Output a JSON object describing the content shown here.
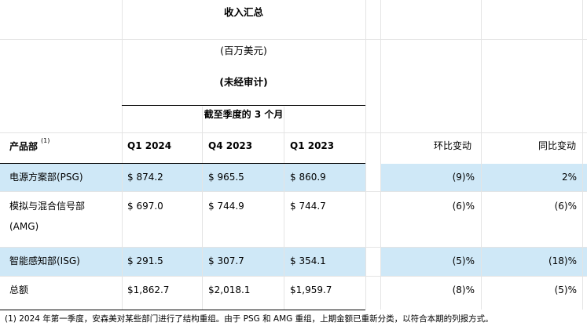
{
  "header": {
    "title": "收入汇总",
    "unit": "(百万美元)",
    "audit": "(未经审计)",
    "period": "截至季度的 3 个月"
  },
  "columns": {
    "segment_label": "产品部",
    "segment_note": "(1)",
    "q1_2024": "Q1 2024",
    "q4_2023": "Q4 2023",
    "q1_2023": "Q1 2023",
    "qoq": "环比变动",
    "yoy": "同比变动"
  },
  "rows": [
    {
      "name": "电源方案部(PSG)",
      "q1_2024": "$ 874.2",
      "q4_2023": "$ 965.5",
      "q1_2023": "$ 860.9",
      "qoq": "(9)%",
      "yoy": "2%"
    },
    {
      "name_line1": "模拟与混合信号部",
      "name_line2": "(AMG)",
      "q1_2024": "$ 697.0",
      "q4_2023": "$ 744.9",
      "q1_2023": "$ 744.7",
      "qoq": "(6)%",
      "yoy": "(6)%"
    },
    {
      "name": "智能感知部(ISG)",
      "q1_2024": "$ 291.5",
      "q4_2023": "$ 307.7",
      "q1_2023": "$ 354.1",
      "qoq": "(5)%",
      "yoy": "(18)%"
    },
    {
      "name": "总额",
      "q1_2024": "$1,862.7",
      "q4_2023": "$2,018.1",
      "q1_2023": "$1,959.7",
      "qoq": "(8)%",
      "yoy": "(5)%"
    }
  ],
  "footnote": "(1)  2024 年第一季度，安森美对某些部门进行了结构重组。由于 PSG 和 AMG 重组，上期金额已重新分类，以符合本期的列报方式。",
  "colors": {
    "highlight_band": "#cfe8f7",
    "gridline": "#e4e4e4"
  }
}
